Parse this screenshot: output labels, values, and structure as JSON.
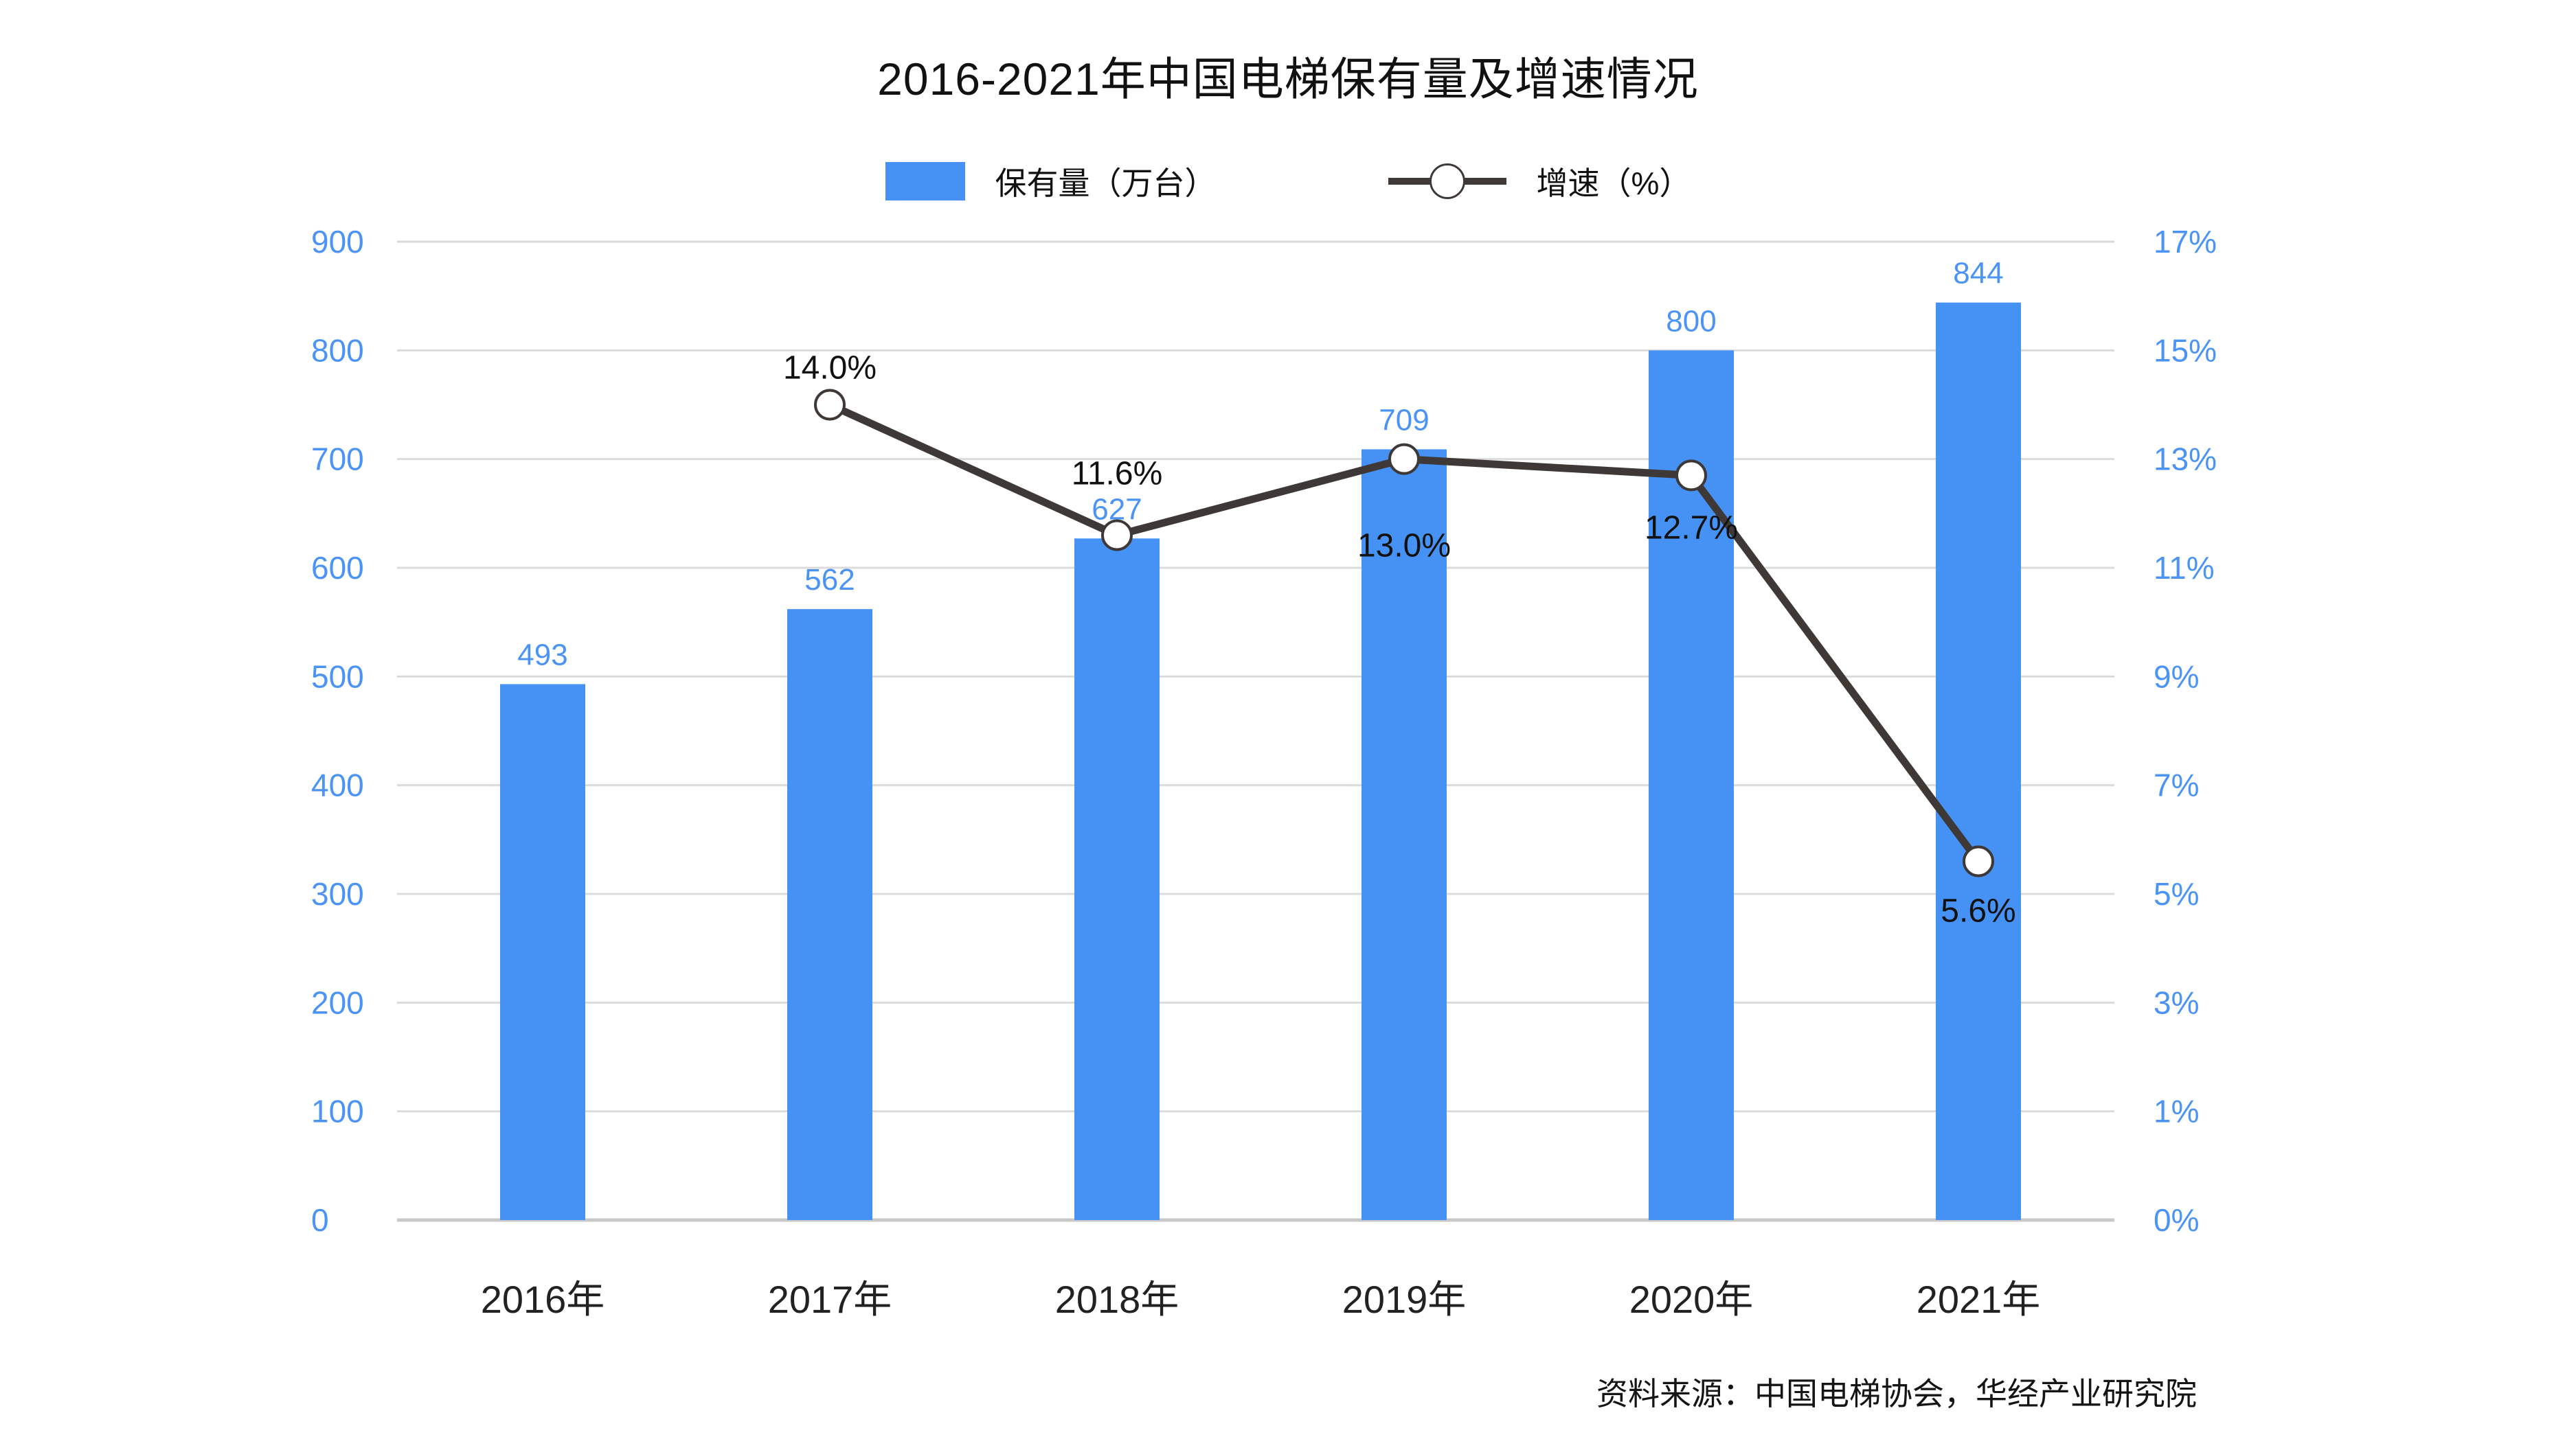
{
  "chart_data": {
    "type": "combo-bar-line",
    "title": "2016-2021年中国电梯保有量及增速情况",
    "categories": [
      "2016年",
      "2017年",
      "2018年",
      "2019年",
      "2020年",
      "2021年"
    ],
    "series": [
      {
        "name": "保有量（万台）",
        "type": "bar",
        "axis": "left",
        "color": "#4592F4",
        "values": [
          493,
          562,
          627,
          709,
          800,
          844
        ],
        "data_labels": [
          "493",
          "562",
          "627",
          "709",
          "800",
          "844"
        ]
      },
      {
        "name": "增速（%）",
        "type": "line",
        "axis": "right",
        "color": "#3E3937",
        "marker": "white-circle",
        "values": [
          null,
          14.0,
          11.6,
          13.0,
          12.7,
          5.6
        ],
        "data_labels": [
          "",
          "14.0%",
          "11.6%",
          "13.0%",
          "12.7%",
          "5.6%"
        ],
        "label_positions": [
          "",
          "above",
          "above",
          "below",
          "below",
          "below"
        ]
      }
    ],
    "left_axis": {
      "min": 0,
      "max": 900,
      "tick_labels": [
        "900",
        "800",
        "700",
        "600",
        "500",
        "400",
        "300",
        "200",
        "100",
        "0"
      ],
      "tick_values": [
        900,
        800,
        700,
        600,
        500,
        400,
        300,
        200,
        100,
        0
      ],
      "label_color": "#4B94F5"
    },
    "right_axis": {
      "tick_labels": [
        "17%",
        "15%",
        "13%",
        "11%",
        "9%",
        "7%",
        "5%",
        "3%",
        "1%",
        "0%"
      ],
      "tick_values": [
        17,
        15,
        13,
        11,
        9,
        7,
        5,
        3,
        1,
        0
      ],
      "label_color": "#4B94F5"
    },
    "grid": {
      "show": true,
      "color": "#DBDBDB",
      "baseline_color": "#C9C9C9"
    },
    "legend_position": "top",
    "source_note": "资料来源：中国电梯协会，华经产业研究院"
  }
}
